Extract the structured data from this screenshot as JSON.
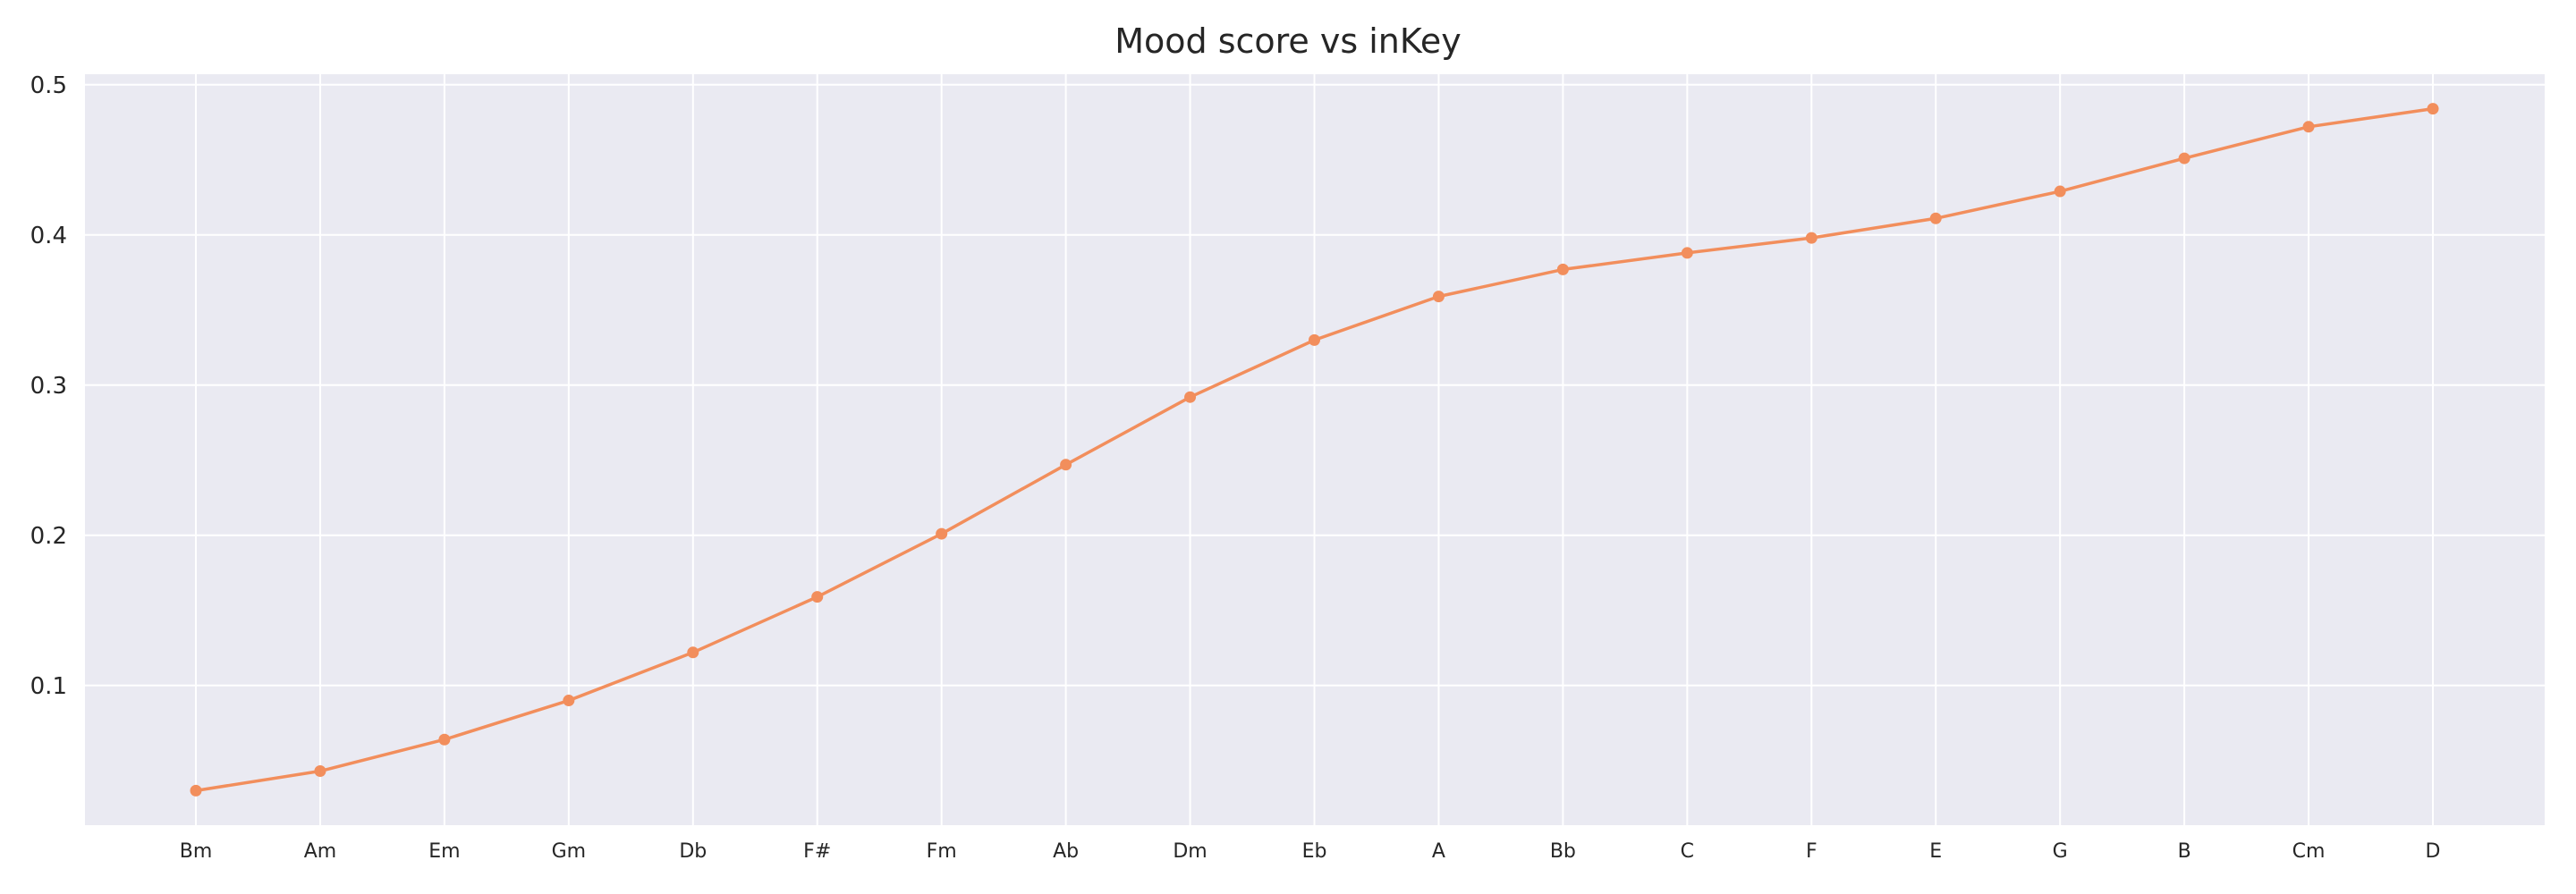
{
  "chart_data": {
    "type": "line",
    "title": "Mood score vs inKey",
    "xlabel": "",
    "ylabel": "",
    "categories": [
      "Bm",
      "Am",
      "Em",
      "Gm",
      "Db",
      "F#",
      "Fm",
      "Ab",
      "Dm",
      "Eb",
      "A",
      "Bb",
      "C",
      "F",
      "E",
      "G",
      "B",
      "Cm",
      "D"
    ],
    "series": [
      {
        "values": [
          0.03,
          0.043,
          0.064,
          0.09,
          0.122,
          0.159,
          0.201,
          0.247,
          0.292,
          0.33,
          0.359,
          0.377,
          0.388,
          0.398,
          0.411,
          0.429,
          0.451,
          0.472,
          0.484
        ],
        "color": "#f28e5c"
      }
    ],
    "yticks": [
      0.1,
      0.2,
      0.3,
      0.4,
      0.5
    ],
    "ylim": [
      0.007,
      0.507
    ],
    "grid": true,
    "legend": "none",
    "colors": {
      "background": "#eaeaf2",
      "grid": "#ffffff",
      "line": "#f28e5c"
    }
  }
}
